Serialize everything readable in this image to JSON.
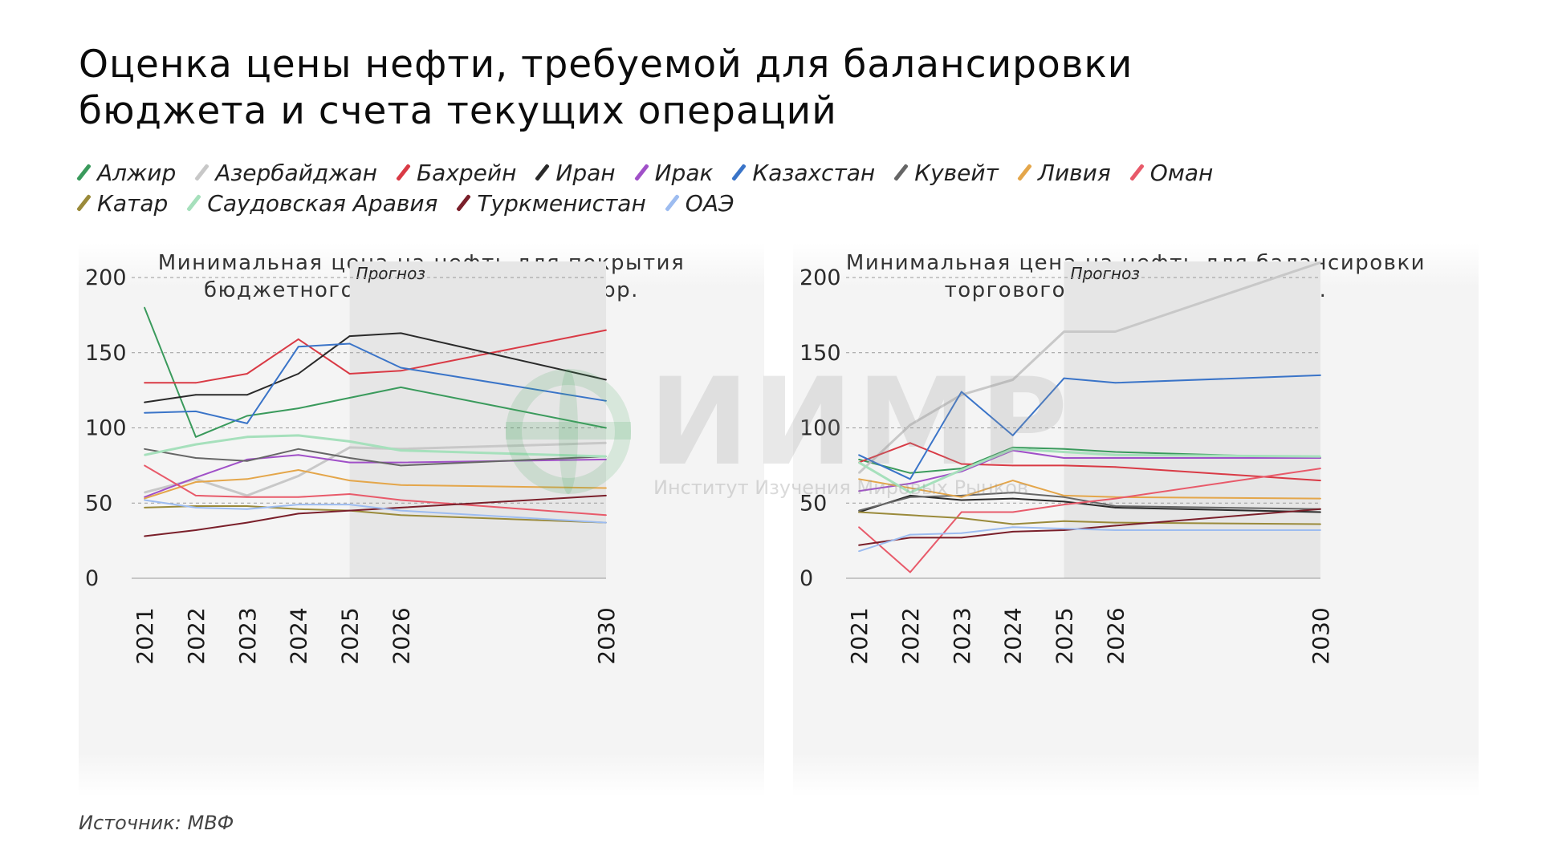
{
  "header": {
    "title_line1": "Оценка цены нефти, требуемой для балансировки",
    "title_line2": "бюджета и счета текущих операций"
  },
  "source": "Источник: МВФ",
  "watermark": {
    "text": "ИИМР",
    "subtitle": "Институт Изучения Мировых Рынков"
  },
  "legend": [
    {
      "name": "Алжир",
      "color": "#3a9a5c"
    },
    {
      "name": "Азербайджан",
      "color": "#c8c8c8"
    },
    {
      "name": "Бахрейн",
      "color": "#d93a45"
    },
    {
      "name": "Иран",
      "color": "#2a2a2a"
    },
    {
      "name": "Ирак",
      "color": "#a050c8"
    },
    {
      "name": "Казахстан",
      "color": "#3a74c8"
    },
    {
      "name": "Кувейт",
      "color": "#666666"
    },
    {
      "name": "Ливия",
      "color": "#e4a64a"
    },
    {
      "name": "Оман",
      "color": "#e85a6a"
    },
    {
      "name": "Катар",
      "color": "#9a8a3a"
    },
    {
      "name": "Саудовская Аравия",
      "color": "#a6e0bc"
    },
    {
      "name": "Туркменистан",
      "color": "#7a1f2a"
    },
    {
      "name": "ОАЭ",
      "color": "#9dbcf0"
    }
  ],
  "chart_data": [
    {
      "type": "line",
      "title_line1": "Минимальная цена на нефть для покрытия",
      "title_line2": "бюджетного дефицита, долл./барр.",
      "forecast_label": "Прогноз",
      "forecast_from": 2025,
      "x": [
        2021,
        2022,
        2023,
        2024,
        2025,
        2026,
        2030
      ],
      "yticks": [
        0,
        50,
        100,
        150,
        200
      ],
      "ylim": [
        0,
        205
      ],
      "series": [
        {
          "name": "Алжир",
          "values": [
            180,
            94,
            108,
            113,
            120,
            127,
            100
          ]
        },
        {
          "name": "Азербайджан",
          "values": [
            57,
            66,
            55,
            68,
            87,
            86,
            90
          ]
        },
        {
          "name": "Бахрейн",
          "values": [
            130,
            130,
            136,
            159,
            136,
            138,
            165
          ]
        },
        {
          "name": "Иран",
          "values": [
            117,
            122,
            122,
            136,
            161,
            163,
            132
          ]
        },
        {
          "name": "Ирак",
          "values": [
            54,
            67,
            79,
            82,
            77,
            77,
            79
          ]
        },
        {
          "name": "Казахстан",
          "values": [
            110,
            111,
            103,
            154,
            156,
            140,
            118
          ]
        },
        {
          "name": "Кувейт",
          "values": [
            86,
            80,
            78,
            86,
            80,
            75,
            81
          ]
        },
        {
          "name": "Ливия",
          "values": [
            53,
            64,
            66,
            72,
            65,
            62,
            60
          ]
        },
        {
          "name": "Оман",
          "values": [
            75,
            55,
            54,
            54,
            56,
            52,
            42
          ]
        },
        {
          "name": "Катар",
          "values": [
            47,
            48,
            48,
            46,
            45,
            42,
            37
          ]
        },
        {
          "name": "Саудовская Аравия",
          "values": [
            82,
            89,
            94,
            95,
            91,
            85,
            81
          ]
        },
        {
          "name": "Туркменистан",
          "values": [
            28,
            32,
            37,
            43,
            45,
            47,
            55
          ]
        },
        {
          "name": "ОАЭ",
          "values": [
            52,
            47,
            46,
            49,
            49,
            45,
            37
          ]
        }
      ]
    },
    {
      "type": "line",
      "title_line1": "Минимальная цена на нефть для балансировки",
      "title_line2": "торгового баланса, долл./барр.",
      "forecast_label": "Прогноз",
      "forecast_from": 2025,
      "x": [
        2021,
        2022,
        2023,
        2024,
        2025,
        2026,
        2030
      ],
      "yticks": [
        0,
        50,
        100,
        150,
        200
      ],
      "ylim": [
        0,
        210
      ],
      "series": [
        {
          "name": "Алжир",
          "values": [
            79,
            70,
            73,
            87,
            86,
            84,
            80
          ]
        },
        {
          "name": "Азербайджан",
          "values": [
            70,
            102,
            122,
            132,
            164,
            164,
            210
          ]
        },
        {
          "name": "Бахрейн",
          "values": [
            77,
            90,
            76,
            75,
            75,
            74,
            65
          ]
        },
        {
          "name": "Иран",
          "values": [
            44,
            55,
            52,
            53,
            51,
            47,
            44
          ]
        },
        {
          "name": "Ирак",
          "values": [
            58,
            63,
            71,
            85,
            80,
            80,
            80
          ]
        },
        {
          "name": "Казахстан",
          "values": [
            82,
            66,
            124,
            95,
            133,
            130,
            135
          ]
        },
        {
          "name": "Кувейт",
          "values": [
            45,
            54,
            55,
            57,
            54,
            48,
            46
          ]
        },
        {
          "name": "Ливия",
          "values": [
            66,
            60,
            54,
            65,
            55,
            54,
            53
          ]
        },
        {
          "name": "Оман",
          "values": [
            34,
            4,
            44,
            44,
            49,
            53,
            73
          ]
        },
        {
          "name": "Катар",
          "values": [
            44,
            42,
            40,
            36,
            38,
            37,
            36
          ]
        },
        {
          "name": "Саудовская Аравия",
          "values": [
            77,
            57,
            72,
            86,
            84,
            82,
            81
          ]
        },
        {
          "name": "Туркменистан",
          "values": [
            22,
            27,
            27,
            31,
            32,
            35,
            46
          ]
        },
        {
          "name": "ОАЭ",
          "values": [
            18,
            29,
            30,
            34,
            33,
            32,
            32
          ]
        }
      ]
    }
  ]
}
